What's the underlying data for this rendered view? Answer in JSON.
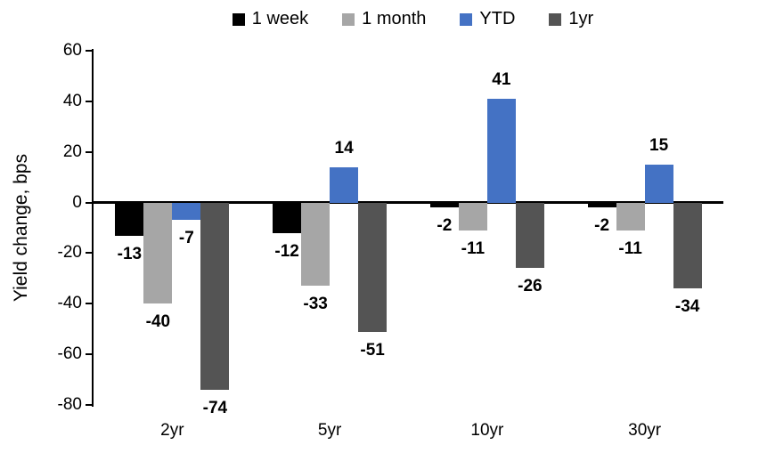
{
  "chart_data": {
    "type": "bar",
    "title": "",
    "xlabel": "",
    "ylabel": "Yield change, bps",
    "categories": [
      "2yr",
      "5yr",
      "10yr",
      "30yr"
    ],
    "series": [
      {
        "name": "1 week",
        "color": "#000000",
        "values": [
          -13,
          -12,
          -2,
          -2
        ]
      },
      {
        "name": "1 month",
        "color": "#A6A6A6",
        "values": [
          -40,
          -33,
          -11,
          -11
        ]
      },
      {
        "name": "YTD",
        "color": "#4472C4",
        "values": [
          -7,
          14,
          41,
          15
        ]
      },
      {
        "name": "1yr",
        "color": "#545454",
        "values": [
          -74,
          -51,
          -26,
          -34
        ]
      }
    ],
    "ylim": [
      -80,
      60
    ],
    "yticks": [
      60,
      40,
      20,
      0,
      -20,
      -40,
      -60,
      -80
    ],
    "legend_position": "top",
    "grid": false,
    "data_labels": true
  }
}
